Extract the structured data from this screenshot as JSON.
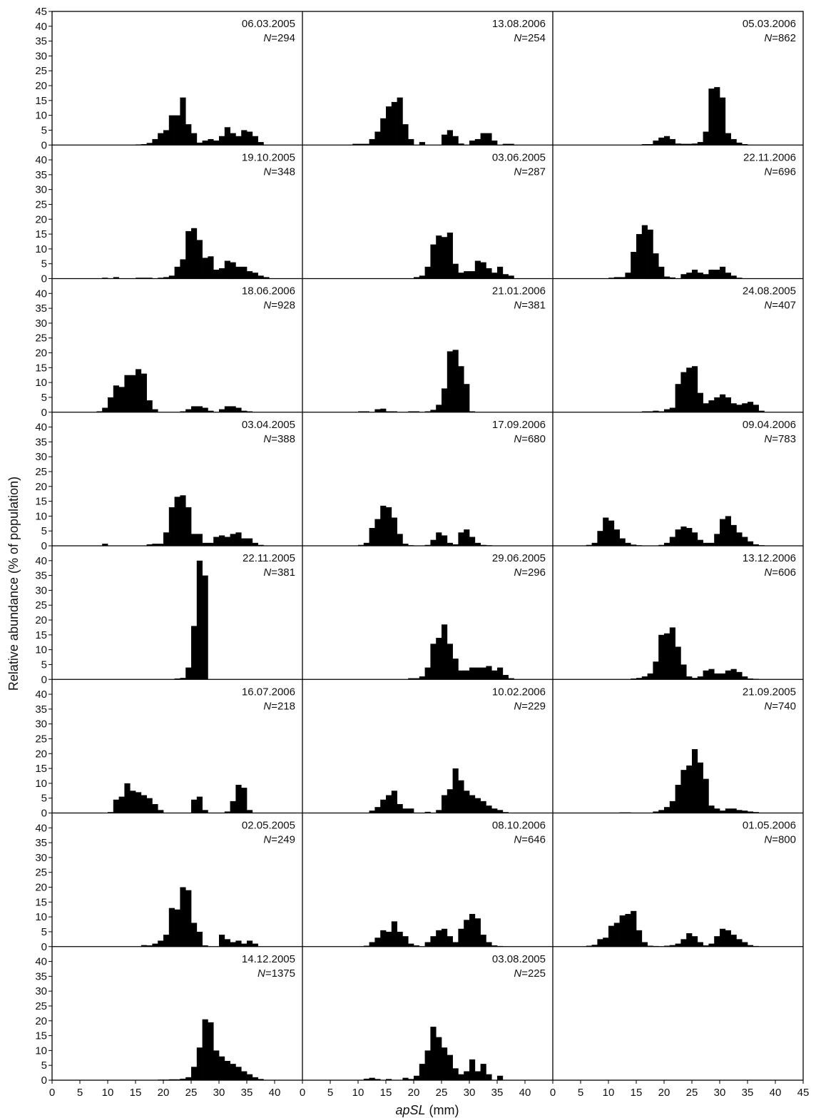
{
  "chart_data": {
    "type": "bar",
    "layout": "small multiples, 8 rows x 3 columns, histograms",
    "ylabel": "Relative abundance (% of population)",
    "xlabel_italic": "apSL",
    "xlabel_unit": "(mm)",
    "xlim": [
      0,
      45
    ],
    "ylim": [
      0,
      45
    ],
    "x_ticks": [
      "0",
      "5",
      "10",
      "15",
      "20",
      "25",
      "30",
      "35",
      "40",
      "45"
    ],
    "x_ticks_last_column": [
      "0",
      "5",
      "10",
      "15",
      "20",
      "25",
      "30",
      "35",
      "40",
      "45"
    ],
    "y_ticks": [
      "0",
      "5",
      "10",
      "15",
      "20",
      "25",
      "30",
      "35",
      "40",
      "45"
    ],
    "n_prefix": "N",
    "bin_start": 0,
    "bin_width": 1,
    "bar_color": "#000000",
    "panels": [
      {
        "date": "06.03.2005",
        "n": "=294",
        "values": [
          0,
          0,
          0,
          0,
          0,
          0,
          0,
          0,
          0,
          0,
          0,
          0,
          0,
          0,
          0,
          0.2,
          0.3,
          0.7,
          2,
          4,
          5,
          10,
          10,
          16,
          7,
          4,
          0.8,
          1.5,
          2,
          1.5,
          3,
          6,
          4,
          3,
          5,
          4.5,
          3,
          1,
          0,
          0,
          0,
          0,
          0,
          0,
          0
        ]
      },
      {
        "date": "19.10.2005",
        "n": "=348",
        "values": [
          0,
          0,
          0,
          0,
          0,
          0,
          0,
          0,
          0,
          0.3,
          0,
          0.5,
          0,
          0,
          0,
          0.3,
          0.3,
          0.3,
          0,
          0.3,
          0.5,
          1,
          4,
          6.5,
          16,
          17,
          13,
          7,
          7.5,
          3,
          3.5,
          6,
          5.5,
          4,
          4,
          2.5,
          2,
          1,
          0.5,
          0,
          0,
          0,
          0,
          0,
          0
        ]
      },
      {
        "date": "18.06.2006",
        "n": "=928",
        "values": [
          0,
          0,
          0,
          0,
          0,
          0,
          0,
          0,
          0.3,
          1.5,
          5,
          9,
          8.5,
          12.5,
          12.5,
          14.5,
          13,
          4,
          1,
          0,
          0,
          0,
          0,
          0.3,
          1,
          2,
          2,
          1.5,
          0.5,
          0,
          1,
          2,
          2,
          1.5,
          0.5,
          0.3,
          0,
          0,
          0,
          0,
          0,
          0,
          0,
          0,
          0
        ]
      },
      {
        "date": "03.04.2005",
        "n": "=388",
        "values": [
          0,
          0,
          0,
          0,
          0,
          0,
          0,
          0,
          0,
          0.7,
          0,
          0,
          0,
          0,
          0,
          0,
          0,
          0.5,
          0.7,
          0.7,
          4.5,
          13,
          16.5,
          17,
          13,
          4,
          4,
          1,
          1,
          3,
          3.5,
          3,
          4,
          4.5,
          2.5,
          2.5,
          1,
          0.3,
          0,
          0,
          0,
          0,
          0,
          0,
          0
        ]
      },
      {
        "date": "22.11.2005",
        "n": "=381",
        "values": [
          0,
          0,
          0,
          0,
          0,
          0,
          0,
          0,
          0,
          0,
          0,
          0,
          0,
          0,
          0,
          0,
          0,
          0,
          0,
          0,
          0,
          0,
          0.3,
          0.5,
          4,
          18,
          40,
          35,
          0,
          0,
          0,
          0,
          0,
          0,
          0,
          0,
          0,
          0,
          0,
          0,
          0,
          0,
          0,
          0,
          0
        ]
      },
      {
        "date": "16.07.2006",
        "n": "=218",
        "values": [
          0,
          0,
          0,
          0,
          0,
          0,
          0,
          0,
          0,
          0,
          0.3,
          4.5,
          5.5,
          10,
          7.5,
          7,
          6,
          5,
          3,
          1,
          0,
          0,
          0,
          0,
          0,
          4.5,
          5.5,
          1,
          0,
          0,
          0,
          0.5,
          4,
          9.5,
          8.5,
          1,
          0,
          0,
          0,
          0,
          0,
          0,
          0,
          0,
          0
        ]
      },
      {
        "date": "02.05.2005",
        "n": "=249",
        "values": [
          0,
          0,
          0,
          0,
          0,
          0,
          0,
          0,
          0,
          0,
          0,
          0,
          0,
          0,
          0,
          0,
          0.5,
          0.4,
          1,
          2,
          4,
          13,
          12.5,
          20,
          19,
          8,
          5,
          0.4,
          0,
          0,
          4,
          2.5,
          1.5,
          2,
          1,
          2,
          1,
          0,
          0,
          0,
          0,
          0,
          0,
          0,
          0
        ]
      },
      {
        "date": "14.12.2005",
        "n": "=1375",
        "values": [
          0,
          0,
          0,
          0,
          0,
          0,
          0,
          0,
          0,
          0,
          0,
          0,
          0,
          0,
          0,
          0,
          0,
          0,
          0,
          0.2,
          0.2,
          0.3,
          0.3,
          0.5,
          1,
          4.5,
          11,
          20.5,
          19.5,
          10,
          8,
          6.5,
          5.5,
          4.5,
          3,
          2,
          1,
          0.4,
          0,
          0,
          0,
          0,
          0,
          0,
          0
        ]
      },
      {
        "date": "13.08.2006",
        "n": "=254",
        "values": [
          0,
          0,
          0,
          0,
          0,
          0,
          0,
          0,
          0,
          0.4,
          0.4,
          0.4,
          2,
          4.5,
          9,
          13,
          14.5,
          16,
          7,
          2,
          0,
          1,
          0,
          0,
          0,
          3.5,
          5,
          3,
          0.5,
          0,
          1.5,
          2,
          4,
          4,
          1.5,
          0,
          0.4,
          0.4,
          0,
          0,
          0,
          0,
          0,
          0,
          0
        ]
      },
      {
        "date": "03.06.2005",
        "n": "=287",
        "values": [
          0,
          0,
          0,
          0,
          0,
          0,
          0,
          0,
          0,
          0,
          0,
          0,
          0,
          0,
          0,
          0,
          0,
          0,
          0,
          0,
          0.5,
          1,
          4,
          11.5,
          14.5,
          14,
          15.5,
          5,
          2,
          2.5,
          2.5,
          6,
          5.5,
          3.5,
          2,
          4,
          1.5,
          1,
          0,
          0,
          0,
          0,
          0,
          0,
          0
        ]
      },
      {
        "date": "21.01.2006",
        "n": "=381",
        "values": [
          0,
          0,
          0,
          0,
          0,
          0,
          0,
          0,
          0,
          0,
          0.3,
          0.3,
          0,
          1,
          1.2,
          0.3,
          0.3,
          0,
          0,
          0.3,
          0.3,
          0,
          0.3,
          0.8,
          2.5,
          8,
          20.5,
          21,
          15.5,
          9.5,
          0.3,
          0,
          0,
          0,
          0,
          0,
          0,
          0,
          0,
          0,
          0,
          0,
          0,
          0,
          0
        ]
      },
      {
        "date": "17.09.2006",
        "n": "=680",
        "values": [
          0,
          0,
          0,
          0,
          0,
          0,
          0,
          0,
          0,
          0,
          0.3,
          1,
          6,
          9,
          13.5,
          13,
          9.5,
          4,
          0.7,
          0.2,
          0,
          0,
          0.3,
          2,
          4.5,
          3.5,
          1,
          0.5,
          4.5,
          5.5,
          3,
          1,
          0.3,
          0.2,
          0,
          0,
          0,
          0,
          0,
          0,
          0,
          0,
          0,
          0,
          0
        ]
      },
      {
        "date": "29.06.2005",
        "n": "=296",
        "values": [
          0,
          0,
          0,
          0,
          0,
          0,
          0,
          0,
          0,
          0,
          0,
          0,
          0,
          0,
          0,
          0,
          0,
          0,
          0,
          0.4,
          0.4,
          1,
          4,
          12,
          14,
          18.5,
          12,
          7,
          3,
          3,
          4,
          4,
          4,
          4.5,
          3,
          4,
          1.5,
          0.4,
          0,
          0,
          0,
          0,
          0,
          0,
          0
        ]
      },
      {
        "date": "10.02.2006",
        "n": "=229",
        "values": [
          0,
          0,
          0,
          0,
          0,
          0,
          0,
          0,
          0,
          0,
          0,
          0,
          0.8,
          2,
          4.5,
          6,
          7.5,
          3,
          1.5,
          1.5,
          0,
          0,
          0.4,
          0,
          1,
          6,
          8,
          15,
          11,
          7.5,
          6,
          5,
          4,
          2.5,
          1.5,
          1,
          0.3,
          0,
          0,
          0,
          0,
          0,
          0,
          0,
          0
        ]
      },
      {
        "date": "08.10.2006",
        "n": "=646",
        "values": [
          0,
          0,
          0,
          0,
          0,
          0,
          0,
          0,
          0,
          0,
          0,
          0.3,
          1.5,
          3,
          5.5,
          5,
          8.5,
          5,
          3.5,
          1,
          0.4,
          0,
          1.5,
          3.5,
          5.5,
          6,
          3.5,
          1.5,
          6,
          9,
          11,
          9.5,
          4,
          1.5,
          0.4,
          0.2,
          0,
          0,
          0,
          0,
          0,
          0,
          0,
          0,
          0
        ]
      },
      {
        "date": "03.08.2005",
        "n": "=225",
        "values": [
          0,
          0,
          0,
          0,
          0,
          0,
          0,
          0,
          0,
          0,
          0,
          0.5,
          0.8,
          0.4,
          0,
          0.4,
          0,
          0,
          0.8,
          0.4,
          1.5,
          5.5,
          10,
          18,
          14.5,
          11,
          8.5,
          4,
          2,
          3,
          7,
          3,
          5.5,
          2,
          0,
          1.5,
          0,
          0,
          0,
          0,
          0,
          0,
          0,
          0,
          0
        ]
      },
      {
        "date": "05.03.2006",
        "n": "=862",
        "values": [
          0,
          0,
          0,
          0,
          0,
          0,
          0,
          0,
          0,
          0,
          0,
          0,
          0,
          0,
          0,
          0,
          0.3,
          0.3,
          1.5,
          2.5,
          3,
          2,
          0.5,
          0.4,
          0.4,
          0.5,
          1,
          4.5,
          19,
          19.5,
          16,
          4,
          2,
          0.8,
          0.3,
          0,
          0,
          0,
          0,
          0,
          0,
          0,
          0,
          0,
          0
        ]
      },
      {
        "date": "22.11.2006",
        "n": "=696",
        "values": [
          0,
          0,
          0,
          0,
          0,
          0,
          0,
          0,
          0,
          0,
          0.3,
          0.5,
          0.5,
          2,
          9,
          15,
          18,
          16.5,
          8.5,
          4,
          0.7,
          0.4,
          0,
          1.5,
          2,
          3,
          2,
          1.5,
          3,
          3,
          4,
          2,
          1,
          0.3,
          0,
          0,
          0,
          0,
          0,
          0,
          0,
          0,
          0,
          0,
          0
        ]
      },
      {
        "date": "24.08.2005",
        "n": "=407",
        "values": [
          0,
          0,
          0,
          0,
          0,
          0,
          0,
          0,
          0,
          0,
          0,
          0,
          0,
          0,
          0,
          0,
          0.3,
          0.3,
          0.5,
          0.3,
          1,
          1.5,
          9.5,
          13.5,
          15,
          15.5,
          6.5,
          3,
          4,
          5,
          6,
          5,
          3,
          2.5,
          3,
          3.5,
          2.5,
          0.5,
          0,
          0,
          0,
          0,
          0,
          0,
          0
        ]
      },
      {
        "date": "09.04.2006",
        "n": "=783",
        "values": [
          0,
          0,
          0,
          0,
          0,
          0,
          0.3,
          1,
          5,
          9.5,
          8.5,
          5.5,
          2.5,
          1,
          0.4,
          0.2,
          0,
          0,
          0,
          0.3,
          1,
          3,
          5.5,
          6.5,
          6,
          4.5,
          2,
          1,
          1,
          4,
          9,
          10,
          7,
          4.5,
          3,
          1.5,
          0.5,
          0.2,
          0,
          0,
          0,
          0,
          0,
          0,
          0
        ]
      },
      {
        "date": "13.12.2006",
        "n": "=606",
        "values": [
          0,
          0,
          0,
          0,
          0,
          0,
          0,
          0,
          0,
          0,
          0,
          0,
          0,
          0,
          0.3,
          0.5,
          1,
          2,
          6,
          15,
          15.5,
          17.5,
          11,
          5,
          1,
          0.5,
          1,
          3,
          3.5,
          2,
          2,
          3,
          3.5,
          2.5,
          1,
          0.3,
          0.2,
          0,
          0,
          0,
          0,
          0,
          0,
          0,
          0
        ]
      },
      {
        "date": "21.09.2005",
        "n": "=740",
        "values": [
          0,
          0,
          0,
          0,
          0,
          0,
          0,
          0,
          0,
          0,
          0,
          0,
          0.2,
          0.2,
          0,
          0,
          0,
          0,
          0.5,
          1,
          2,
          4,
          9.5,
          14.5,
          16,
          21.5,
          17,
          11.5,
          2.5,
          1.5,
          0.8,
          1.5,
          1.5,
          1,
          0.8,
          0.5,
          0.3,
          0,
          0,
          0,
          0,
          0,
          0,
          0,
          0
        ]
      },
      {
        "date": "01.05.2006",
        "n": "=800",
        "values": [
          0,
          0,
          0,
          0,
          0,
          0,
          0.3,
          0.6,
          2.5,
          3,
          7,
          8,
          10.5,
          11,
          12,
          5.5,
          1.5,
          0.3,
          0.2,
          0,
          0.3,
          0.5,
          1,
          2.5,
          4.5,
          3.5,
          1.5,
          0.4,
          1,
          3.5,
          6,
          5.5,
          4,
          2.5,
          1.5,
          0.5,
          0.2,
          0,
          0,
          0,
          0,
          0,
          0,
          0,
          0
        ]
      }
    ]
  }
}
